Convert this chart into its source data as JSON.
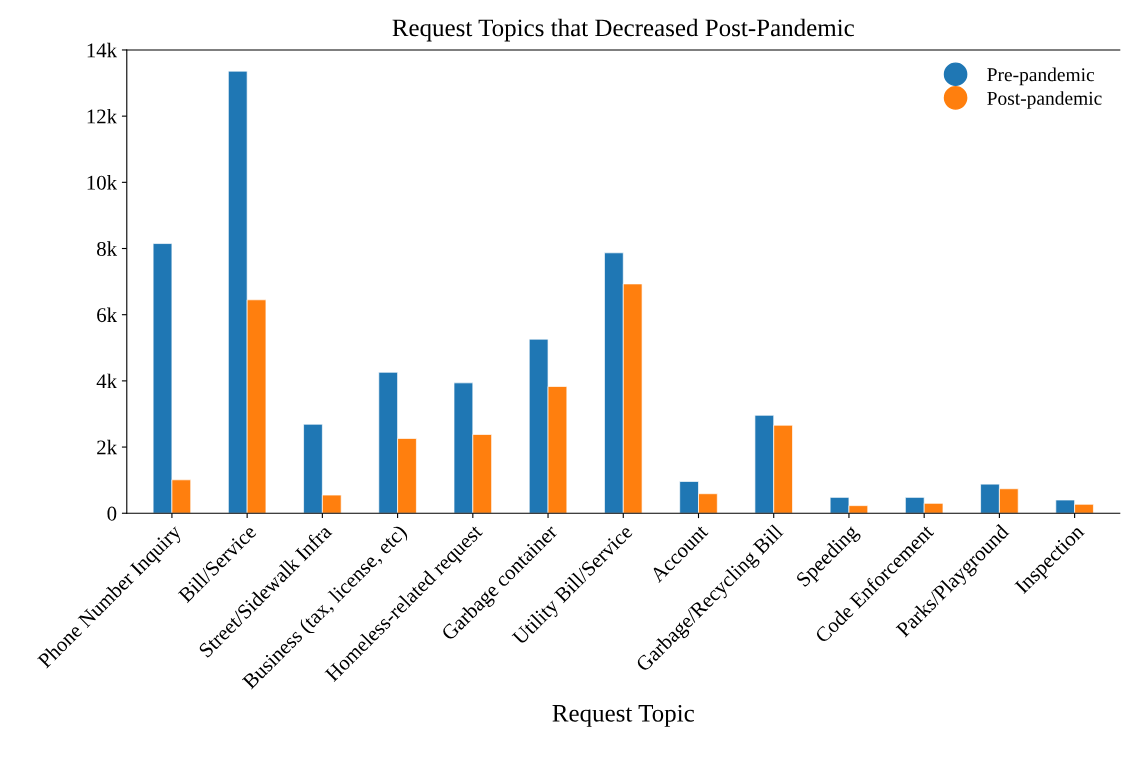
{
  "chart_data": {
    "type": "bar",
    "title": "Request Topics that Decreased Post-Pandemic",
    "xlabel": "Request Topic",
    "categories": [
      "Phone Number Inquiry",
      "Bill/Service",
      "Street/Sidewalk Infra",
      "Business (tax, license, etc)",
      "Homeless-related request",
      "Garbage container",
      "Utility Bill/Service",
      "Account",
      "Garbage/Recycling Bill",
      "Speeding",
      "Code Enforcement",
      "Parks/Playground",
      "Inspection"
    ],
    "series": [
      {
        "name": "Pre-pandemic",
        "color": "#1f77b4",
        "values": [
          8150,
          13360,
          2690,
          4260,
          3940,
          5260,
          7870,
          960,
          2960,
          480,
          480,
          880,
          400
        ]
      },
      {
        "name": "Post-pandemic",
        "color": "#ff7f0e",
        "values": [
          1010,
          6450,
          550,
          2260,
          2380,
          3830,
          6930,
          590,
          2660,
          230,
          300,
          740,
          270
        ]
      }
    ],
    "ylim": [
      0,
      14000
    ],
    "yticks": [
      {
        "value": 0,
        "label": "0"
      },
      {
        "value": 2000,
        "label": "2k"
      },
      {
        "value": 4000,
        "label": "4k"
      },
      {
        "value": 6000,
        "label": "6k"
      },
      {
        "value": 8000,
        "label": "8k"
      },
      {
        "value": 10000,
        "label": "10k"
      },
      {
        "value": 12000,
        "label": "12k"
      },
      {
        "value": 14000,
        "label": "14k"
      }
    ],
    "legend": "top right",
    "marker": "circle",
    "grid": false
  }
}
